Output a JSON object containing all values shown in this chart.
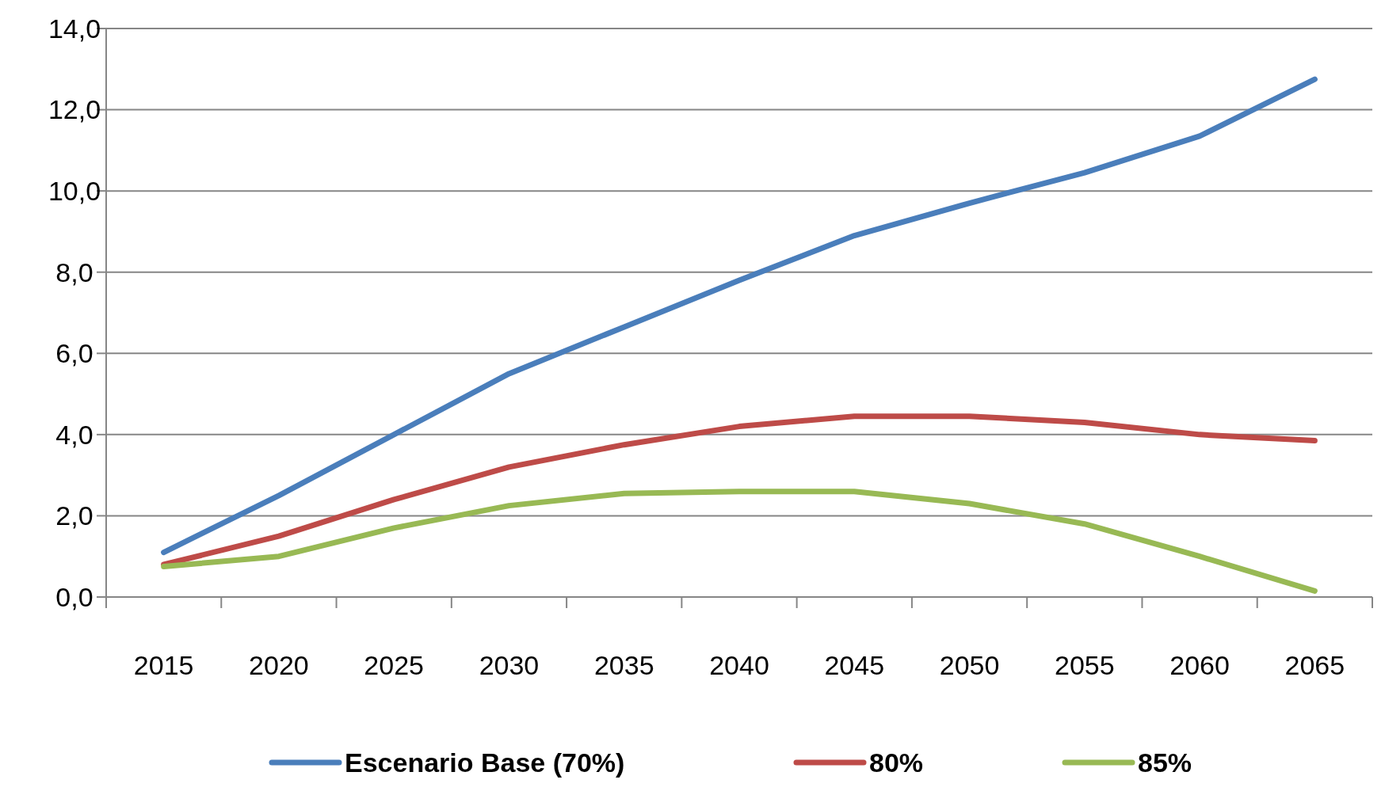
{
  "chart_data": {
    "type": "line",
    "categories": [
      "2015",
      "2020",
      "2025",
      "2030",
      "2035",
      "2040",
      "2045",
      "2050",
      "2055",
      "2060",
      "2065"
    ],
    "series": [
      {
        "name": "Escenario Base (70%)",
        "color": "#4a7ebb",
        "values": [
          1.1,
          2.5,
          4.0,
          5.5,
          6.65,
          7.8,
          8.9,
          9.7,
          10.45,
          11.35,
          12.75
        ]
      },
      {
        "name": "80%",
        "color": "#be4b48",
        "values": [
          0.8,
          1.5,
          2.4,
          3.2,
          3.75,
          4.2,
          4.45,
          4.45,
          4.3,
          4.0,
          3.85
        ]
      },
      {
        "name": "85%",
        "color": "#98b954",
        "values": [
          0.75,
          1.0,
          1.7,
          2.25,
          2.55,
          2.6,
          2.6,
          2.3,
          1.8,
          1.0,
          0.15
        ]
      }
    ],
    "ylim": [
      0,
      14
    ],
    "yticks": [
      {
        "value": 0,
        "label": "0,0"
      },
      {
        "value": 2,
        "label": "2,0"
      },
      {
        "value": 4,
        "label": "4,0"
      },
      {
        "value": 6,
        "label": "6,0"
      },
      {
        "value": 8,
        "label": "8,0"
      },
      {
        "value": 10,
        "label": "10,0"
      },
      {
        "value": 12,
        "label": "12,0"
      },
      {
        "value": 14,
        "label": "14,0"
      }
    ],
    "grid": "y",
    "legend": "bottom",
    "marker": "none",
    "line_style": "solid"
  }
}
